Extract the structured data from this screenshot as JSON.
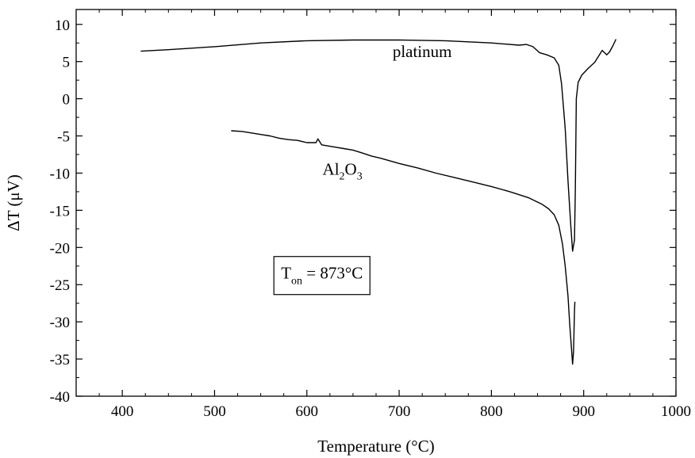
{
  "chart_data": {
    "type": "line",
    "title": "",
    "xlabel": "Temperature (°C)",
    "ylabel": "ΔT (μV)",
    "xlim": [
      350,
      1000
    ],
    "ylim": [
      -40,
      12
    ],
    "x_ticks": [
      400,
      500,
      600,
      700,
      800,
      900,
      1000
    ],
    "y_ticks": [
      10,
      5,
      0,
      -5,
      -10,
      -15,
      -20,
      -25,
      -30,
      -35,
      -40
    ],
    "grid": false,
    "legend": "none",
    "series": [
      {
        "name": "platinum",
        "color": "#000000",
        "points": [
          [
            420,
            6.4
          ],
          [
            450,
            6.6
          ],
          [
            500,
            7.0
          ],
          [
            550,
            7.5
          ],
          [
            600,
            7.8
          ],
          [
            650,
            7.9
          ],
          [
            700,
            7.9
          ],
          [
            750,
            7.8
          ],
          [
            800,
            7.5
          ],
          [
            830,
            7.2
          ],
          [
            838,
            7.3
          ],
          [
            845,
            7.0
          ],
          [
            852,
            6.2
          ],
          [
            860,
            5.9
          ],
          [
            868,
            5.5
          ],
          [
            873,
            4.5
          ],
          [
            876,
            2.0
          ],
          [
            880,
            -4.0
          ],
          [
            883,
            -11.0
          ],
          [
            886,
            -17.0
          ],
          [
            888,
            -20.5
          ],
          [
            890,
            -19.0
          ],
          [
            891,
            -12.0
          ],
          [
            892,
            0.0
          ],
          [
            894,
            2.2
          ],
          [
            898,
            3.2
          ],
          [
            905,
            4.1
          ],
          [
            912,
            4.9
          ],
          [
            917,
            5.9
          ],
          [
            920,
            6.5
          ],
          [
            925,
            5.9
          ],
          [
            928,
            6.3
          ],
          [
            932,
            7.2
          ],
          [
            935,
            8.0
          ]
        ]
      },
      {
        "name": "Al2O3",
        "color": "#000000",
        "points": [
          [
            518,
            -4.3
          ],
          [
            530,
            -4.4
          ],
          [
            540,
            -4.6
          ],
          [
            550,
            -4.8
          ],
          [
            560,
            -5.0
          ],
          [
            570,
            -5.3
          ],
          [
            580,
            -5.5
          ],
          [
            590,
            -5.6
          ],
          [
            600,
            -5.9
          ],
          [
            610,
            -5.9
          ],
          [
            612,
            -5.4
          ],
          [
            616,
            -6.2
          ],
          [
            630,
            -6.5
          ],
          [
            640,
            -6.7
          ],
          [
            650,
            -6.9
          ],
          [
            660,
            -7.3
          ],
          [
            670,
            -7.7
          ],
          [
            680,
            -8.0
          ],
          [
            700,
            -8.7
          ],
          [
            720,
            -9.3
          ],
          [
            740,
            -10.0
          ],
          [
            760,
            -10.6
          ],
          [
            780,
            -11.2
          ],
          [
            800,
            -11.8
          ],
          [
            820,
            -12.5
          ],
          [
            840,
            -13.3
          ],
          [
            855,
            -14.2
          ],
          [
            862,
            -14.8
          ],
          [
            868,
            -15.6
          ],
          [
            873,
            -17.0
          ],
          [
            877,
            -19.5
          ],
          [
            880,
            -22.5
          ],
          [
            883,
            -26.5
          ],
          [
            885,
            -30.5
          ],
          [
            887,
            -34.0
          ],
          [
            888,
            -35.7
          ],
          [
            889,
            -34.0
          ],
          [
            890,
            -28.5
          ],
          [
            890.5,
            -27.3
          ]
        ]
      }
    ],
    "annotations": [
      {
        "name": "platinum-label",
        "text": "platinum",
        "x": 725,
        "y": 5.6
      },
      {
        "name": "al2o3-label",
        "parts": [
          "Al",
          "2",
          "O",
          "3"
        ],
        "x": 617,
        "y": -10.2
      },
      {
        "name": "onset-label",
        "parts": [
          "T",
          "on",
          " = 873°C"
        ],
        "x": 572,
        "y": -24.2
      }
    ]
  }
}
